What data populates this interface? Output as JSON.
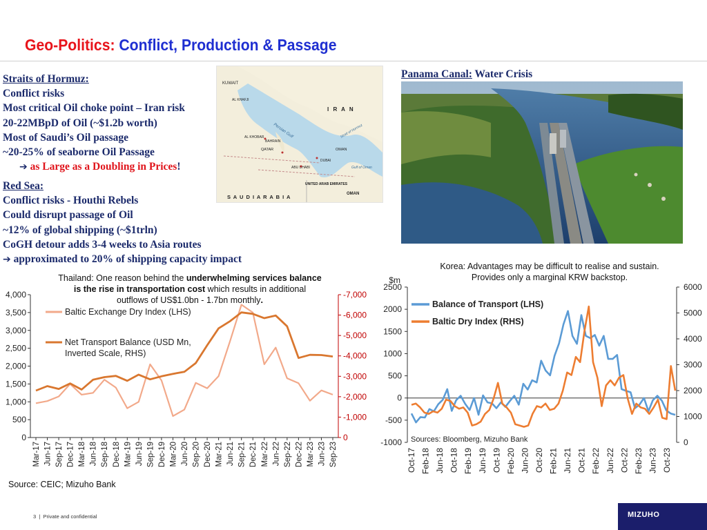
{
  "title": {
    "part1": "Geo-Politics: ",
    "part2": "Conflict, Production & Passage"
  },
  "hormuz": {
    "heading": "Straits of Hormuz:",
    "lines": [
      "Conflict risks",
      "Most critical Oil choke point – Iran risk",
      "20-22MBpD of Oil (~$1.2b worth)",
      "Most of Saudi’s Oil passage",
      "~20-25% of seaborne Oil Passage"
    ],
    "conclusion": "as Large as a Doubling in Prices",
    "conclusion_end": "!"
  },
  "redsea": {
    "heading": "Red Sea:",
    "lines": [
      "Conflict risks - Houthi Rebels",
      "Could disrupt passage of Oil",
      "~12% of global shipping (~$1trln)",
      "CoGH detour adds 3-4 weeks to Asia routes"
    ],
    "conclusion": "approximated to 20% of shipping capacity impact"
  },
  "map": {
    "labels": [
      "KUWAIT",
      "AL KHAFJI",
      "I R A N",
      "Persian Gulf",
      "QATAR",
      "BAHRAIN",
      "AL KHOBAR",
      "ABU DHABI",
      "DUBAI",
      "OMAN",
      "UNITED ARAB EMIRATES",
      "S A U D I   A R A B I A",
      "Gulf of Oman",
      "Strait of Hormuz"
    ]
  },
  "panama": {
    "heading": "Panama Canal:",
    "subheading": " Water Crisis"
  },
  "source_left": "Source: CEIC; Mizuho Bank",
  "footer": {
    "page": "3",
    "sep": "|",
    "text": "Private and confidential"
  },
  "logo": "MIZUHO",
  "colors": {
    "title_red": "#e8141b",
    "title_blue": "#1f2fd1",
    "text_navy": "#1b2a6b",
    "light_series": "#f2a98a",
    "dark_series": "#d9772f",
    "blue_series": "#5b9bd5",
    "orange_series": "#ed7d31"
  },
  "chart_data": [
    {
      "type": "line",
      "title_plain_1": "Thailand: One reason behind the ",
      "title_bold_1": "underwhelming services balance",
      "title_bold_2": "is the rise in transportation cost",
      "title_plain_2": " which results in additional",
      "title_plain_3": "outflows of US$1.0bn - 1.7bn monthly",
      "title_bold_3": ".",
      "categories": [
        "Mar-17",
        "Jun-17",
        "Sep-17",
        "Dec-17",
        "Mar-18",
        "Jun-18",
        "Sep-18",
        "Dec-18",
        "Mar-19",
        "Jun-19",
        "Sep-19",
        "Dec-19",
        "Mar-20",
        "Jun-20",
        "Sep-20",
        "Dec-20",
        "Mar-21",
        "Jun-21",
        "Sep-21",
        "Dec-21",
        "Mar-22",
        "Jun-22",
        "Sep-22",
        "Dec-22",
        "Mar-23",
        "Jun-23",
        "Sep-23"
      ],
      "y_left_range": [
        0,
        4000
      ],
      "y_left_ticks": [
        "0",
        "500",
        "1,000",
        "1,500",
        "2,000",
        "2,500",
        "3,000",
        "3,500",
        "4,000"
      ],
      "y_right_range": [
        0,
        -7000
      ],
      "y_right_ticks": [
        "0",
        "-1,000",
        "-2,000",
        "-3,000",
        "-4,000",
        "-5,000",
        "-6,000",
        "-7,000"
      ],
      "series": [
        {
          "name": "Baltic Exchange Dry Index (LHS)",
          "axis": "left",
          "values": [
            960,
            1020,
            1150,
            1500,
            1200,
            1250,
            1620,
            1400,
            820,
            1000,
            2050,
            1600,
            600,
            780,
            1530,
            1380,
            1720,
            2700,
            3720,
            3500,
            2050,
            2520,
            1660,
            1520,
            1030,
            1320,
            1200
          ]
        },
        {
          "name": "Net Transport Balance (USD Mn, Inverted Scale, RHS)",
          "axis": "right",
          "values": [
            -2300,
            -2520,
            -2380,
            -2650,
            -2350,
            -2830,
            -2960,
            -3020,
            -2780,
            -3080,
            -2850,
            -3000,
            -3120,
            -3220,
            -3650,
            -4520,
            -5350,
            -5700,
            -6130,
            -6060,
            -5850,
            -5980,
            -5450,
            -3900,
            -4050,
            -4040,
            -3970
          ]
        }
      ]
    },
    {
      "type": "line",
      "title_1": "Korea: Advantages may be difficult to realise and sustain.",
      "title_2": "Provides only a marginal KRW backstop.",
      "ylabel": "$m",
      "y_left_range": [
        -1000,
        2500
      ],
      "y_left_ticks": [
        "-1000",
        "-500",
        "0",
        "500",
        "1000",
        "1500",
        "2000",
        "2500"
      ],
      "y_right_range": [
        0,
        6000
      ],
      "y_right_ticks": [
        "0",
        "1000",
        "2000",
        "3000",
        "4000",
        "5000",
        "6000"
      ],
      "x_tick_labels": [
        "Oct-17",
        "Feb-18",
        "Jun-18",
        "Oct-18",
        "Feb-19",
        "Jun-19",
        "Oct-19",
        "Feb-20",
        "Jun-20",
        "Oct-20",
        "Feb-21",
        "Jun-21",
        "Oct-21",
        "Feb-22",
        "Jun-22",
        "Oct-22",
        "Feb-23",
        "Jun-23",
        "Oct-23"
      ],
      "x_start": "Oct-17",
      "x_end": "Dec-23",
      "source": "Sources: Bloomberg, Mizuho Bank",
      "series": [
        {
          "name": "Balance of Transport (LHS)",
          "axis": "left",
          "values": [
            -350,
            -550,
            -430,
            -440,
            -250,
            -300,
            -140,
            -40,
            200,
            -290,
            -50,
            50,
            -130,
            -270,
            0,
            -380,
            60,
            -100,
            -120,
            -230,
            -100,
            -200,
            -70,
            50,
            -150,
            320,
            190,
            400,
            350,
            840,
            620,
            510,
            950,
            1230,
            1660,
            1960,
            1400,
            1220,
            1870,
            1400,
            1350,
            1420,
            1180,
            1400,
            880,
            880,
            970,
            200,
            160,
            130,
            -230,
            -150,
            0,
            -300,
            -50,
            50,
            -60,
            -280,
            -350,
            -380
          ]
        },
        {
          "name": "Baltic Dry Index (RHS)",
          "axis": "right",
          "values": [
            1450,
            1500,
            1350,
            1150,
            1100,
            1200,
            1150,
            1300,
            1650,
            1600,
            1400,
            1300,
            1350,
            1150,
            650,
            700,
            800,
            1100,
            1250,
            1700,
            2300,
            1500,
            1350,
            1150,
            700,
            650,
            600,
            650,
            1100,
            1400,
            1350,
            1500,
            1250,
            1300,
            1500,
            2000,
            2700,
            2600,
            3300,
            3100,
            4300,
            5250,
            3100,
            2500,
            1400,
            2200,
            2400,
            2200,
            2500,
            2600,
            1700,
            1100,
            1500,
            1350,
            1300,
            1100,
            1350,
            1650,
            950,
            900,
            2950,
            2000
          ]
        }
      ]
    }
  ]
}
